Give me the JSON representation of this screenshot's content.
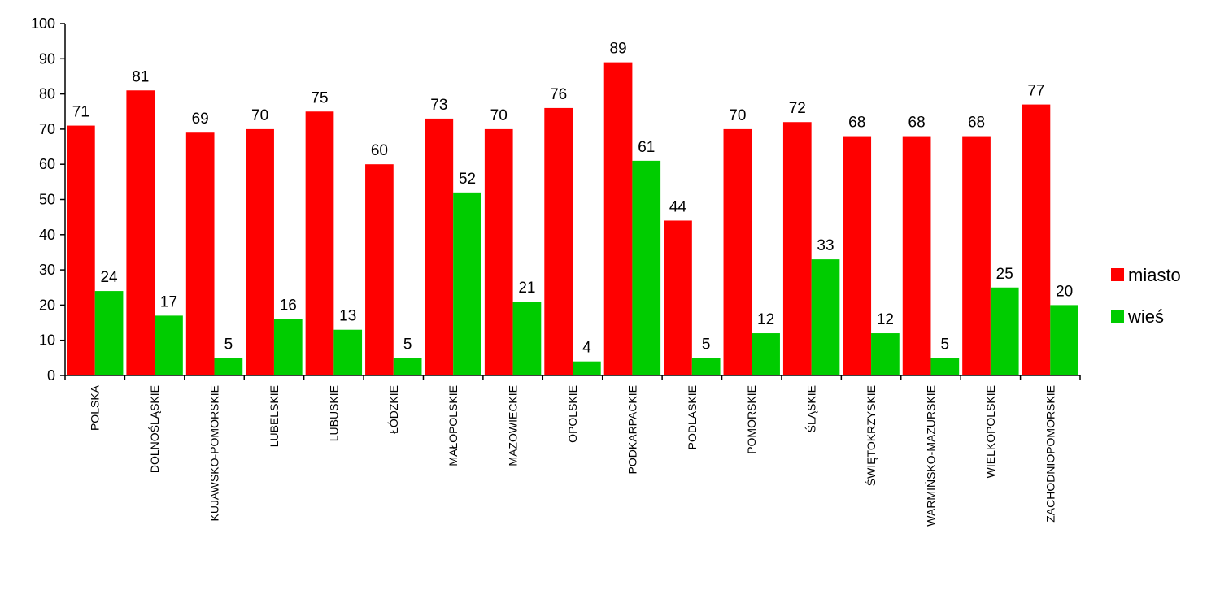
{
  "chart_data": {
    "type": "bar",
    "categories": [
      "POLSKA",
      "DOLNOŚLĄSKIE",
      "KUJAWSKO-POMORSKIE",
      "LUBELSKIE",
      "LUBUSKIE",
      "ŁÓDZKIE",
      "MAŁOPOLSKIE",
      "MAZOWIECKIE",
      "OPOLSKIE",
      "PODKARPACKIE",
      "PODLASKIE",
      "POMORSKIE",
      "ŚLĄSKIE",
      "ŚWIĘTOKRZYSKIE",
      "WARMIŃSKO-MAZURSKIE",
      "WIELKOPOLSKIE",
      "ZACHODNIOPOMORSKIE"
    ],
    "series": [
      {
        "name": "miasto",
        "color": "#ff0000",
        "values": [
          71,
          81,
          69,
          70,
          75,
          60,
          73,
          70,
          76,
          89,
          44,
          70,
          72,
          68,
          68,
          68,
          77
        ],
        "labels": [
          "71",
          "81",
          "69",
          "70",
          "75",
          "60",
          "73",
          "70",
          "76",
          "89",
          "44",
          "70",
          "72",
          "68",
          "68",
          "68",
          "77"
        ]
      },
      {
        "name": "wieś",
        "color": "#00cc00",
        "values": [
          24,
          17,
          5,
          16,
          13,
          5,
          52,
          21,
          4,
          61,
          5,
          12,
          33,
          12,
          5,
          25,
          20
        ],
        "labels": [
          "24",
          "17",
          "5",
          "16",
          "13",
          "5",
          "52",
          "21",
          "4",
          "61",
          "5",
          "12",
          "33",
          "12",
          "5",
          "25",
          "20"
        ]
      }
    ],
    "ylim": [
      0,
      100
    ],
    "yticks": [
      "0",
      "10",
      "20",
      "30",
      "40",
      "50",
      "60",
      "70",
      "80",
      "90",
      "100"
    ],
    "grid": false,
    "legend_position": "right"
  }
}
